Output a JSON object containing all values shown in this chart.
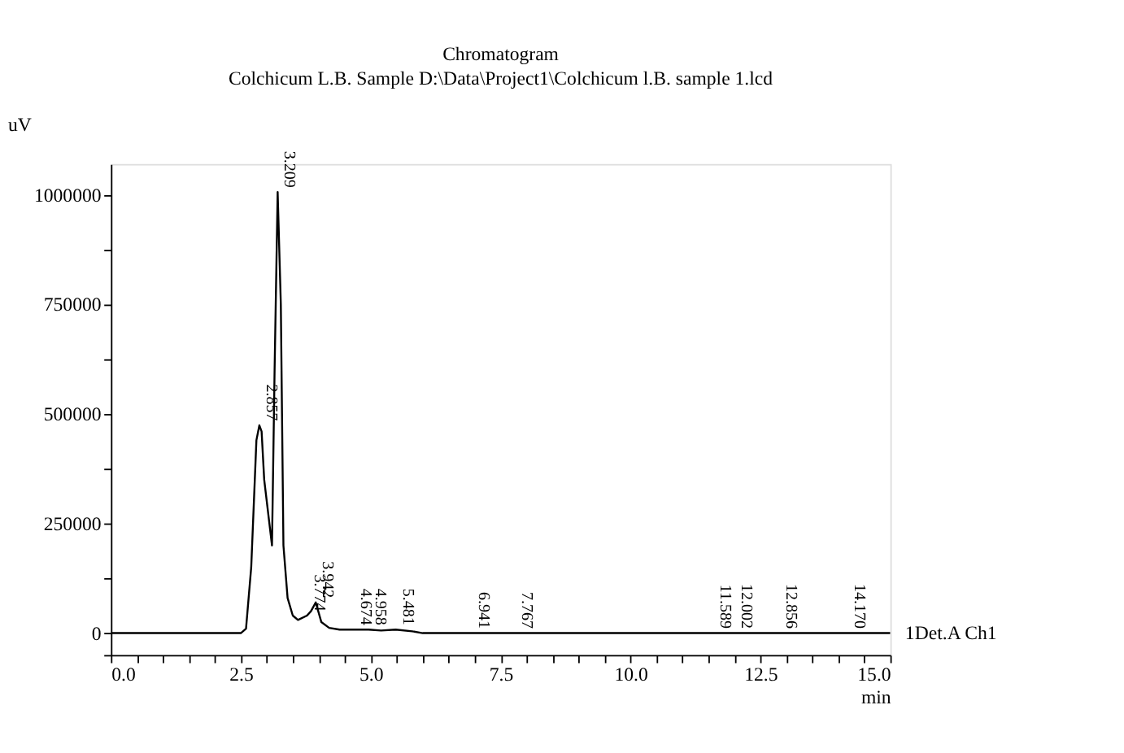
{
  "chart_data": {
    "type": "line",
    "title": "Chromatogram",
    "subtitle": "Colchicum L.B. Sample D:\\Data\\Project1\\Colchicum l.B. sample 1.lcd",
    "xlabel": "min",
    "ylabel": "uV",
    "series": [
      {
        "name": "1Det.A Ch1",
        "color": "#000000",
        "x": [
          0,
          2.5,
          2.6,
          2.7,
          2.8,
          2.857,
          2.9,
          2.95,
          3.0,
          3.05,
          3.1,
          3.15,
          3.209,
          3.27,
          3.32,
          3.4,
          3.5,
          3.6,
          3.774,
          3.85,
          3.942,
          4.05,
          4.2,
          4.4,
          4.674,
          4.958,
          5.2,
          5.481,
          5.8,
          6.0,
          7.0,
          10.0,
          15.0
        ],
        "values": [
          0,
          0,
          10000,
          150000,
          440000,
          474000,
          460000,
          350000,
          300000,
          250000,
          200000,
          600000,
          1006000,
          750000,
          200000,
          80000,
          40000,
          30000,
          40000,
          50000,
          70000,
          25000,
          12000,
          8000,
          8000,
          8000,
          6000,
          8000,
          4000,
          0,
          0,
          0,
          0
        ]
      }
    ],
    "xlim": [
      0,
      15
    ],
    "ylim": [
      -50000,
      1070000
    ],
    "xticks": [
      {
        "value": 0,
        "label": "0.0"
      },
      {
        "value": 0.5,
        "label": null
      },
      {
        "value": 1,
        "label": null
      },
      {
        "value": 1.5,
        "label": null
      },
      {
        "value": 2,
        "label": null
      },
      {
        "value": 2.5,
        "label": "2.5"
      },
      {
        "value": 3,
        "label": null
      },
      {
        "value": 3.5,
        "label": null
      },
      {
        "value": 4,
        "label": null
      },
      {
        "value": 4.5,
        "label": null
      },
      {
        "value": 5,
        "label": "5.0"
      },
      {
        "value": 5.5,
        "label": null
      },
      {
        "value": 6,
        "label": null
      },
      {
        "value": 6.5,
        "label": null
      },
      {
        "value": 7,
        "label": null
      },
      {
        "value": 7.5,
        "label": "7.5"
      },
      {
        "value": 8,
        "label": null
      },
      {
        "value": 8.5,
        "label": null
      },
      {
        "value": 9,
        "label": null
      },
      {
        "value": 9.5,
        "label": null
      },
      {
        "value": 10,
        "label": "10.0"
      },
      {
        "value": 10.5,
        "label": null
      },
      {
        "value": 11,
        "label": null
      },
      {
        "value": 11.5,
        "label": null
      },
      {
        "value": 12,
        "label": null
      },
      {
        "value": 12.5,
        "label": "12.5"
      },
      {
        "value": 13,
        "label": null
      },
      {
        "value": 13.5,
        "label": null
      },
      {
        "value": 14,
        "label": null
      },
      {
        "value": 14.5,
        "label": null
      },
      {
        "value": 15,
        "label": "15.0"
      }
    ],
    "yticks": [
      {
        "value": -50000,
        "label": null
      },
      0,
      {
        "value": 125000,
        "label": null
      },
      250000,
      {
        "value": 375000,
        "label": null
      },
      500000,
      {
        "value": 625000,
        "label": null
      },
      750000,
      {
        "value": 875000,
        "label": null
      },
      1000000
    ],
    "annotations": [
      {
        "text": "2.857",
        "x": 2.857,
        "y": 474000
      },
      {
        "text": "3.209",
        "x": 3.209,
        "y": 1006000
      },
      {
        "text": "3.774",
        "x": 3.774,
        "y": 40000
      },
      {
        "text": "3.942",
        "x": 3.942,
        "y": 70000
      },
      {
        "text": "4.674",
        "x": 4.674,
        "y": 8000
      },
      {
        "text": "4.958",
        "x": 4.958,
        "y": 8000
      },
      {
        "text": "5.481",
        "x": 5.481,
        "y": 8000
      },
      {
        "text": "6.941",
        "x": 6.941,
        "y": 0
      },
      {
        "text": "7.767",
        "x": 7.767,
        "y": 0
      },
      {
        "text": "11.589",
        "x": 11.589,
        "y": 0
      },
      {
        "text": "12.002",
        "x": 12.002,
        "y": 0
      },
      {
        "text": "12.856",
        "x": 12.856,
        "y": 0
      },
      {
        "text": "14.170",
        "x": 14.17,
        "y": 0
      }
    ],
    "grid": false,
    "marker": "none",
    "line_style": "solid"
  }
}
